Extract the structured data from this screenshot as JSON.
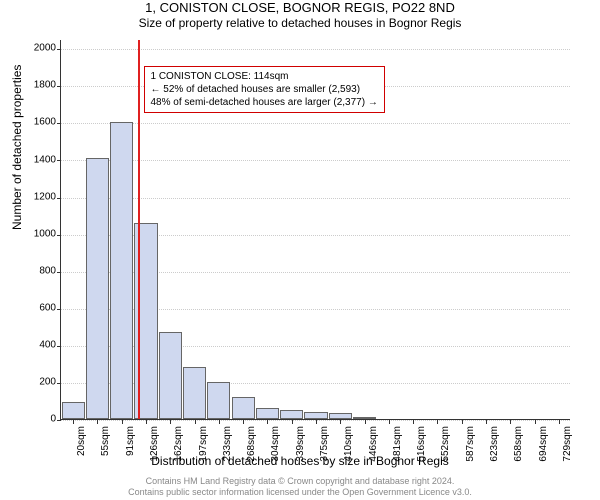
{
  "title": "1, CONISTON CLOSE, BOGNOR REGIS, PO22 8ND",
  "subtitle": "Size of property relative to detached houses in Bognor Regis",
  "ylabel": "Number of detached properties",
  "xlabel": "Distribution of detached houses by size in Bognor Regis",
  "chart": {
    "type": "histogram",
    "background_color": "#ffffff",
    "grid_color": "#cccccc",
    "axis_color": "#333333",
    "bar_fill": "#cfd8ef",
    "bar_border": "#666666",
    "bar_width_ratio": 0.95,
    "ylim": [
      0,
      2050
    ],
    "ytick_step": 200,
    "yticks": [
      0,
      200,
      400,
      600,
      800,
      1000,
      1200,
      1400,
      1600,
      1800,
      2000
    ],
    "x_categories": [
      "20sqm",
      "55sqm",
      "91sqm",
      "126sqm",
      "162sqm",
      "197sqm",
      "233sqm",
      "268sqm",
      "304sqm",
      "339sqm",
      "375sqm",
      "410sqm",
      "446sqm",
      "481sqm",
      "516sqm",
      "552sqm",
      "587sqm",
      "623sqm",
      "658sqm",
      "694sqm",
      "729sqm"
    ],
    "values": [
      90,
      1410,
      1600,
      1060,
      470,
      280,
      200,
      120,
      60,
      50,
      40,
      30,
      10,
      0,
      0,
      0,
      0,
      0,
      0,
      0,
      0
    ],
    "marker": {
      "x_category_index": 2.65,
      "color": "#e02020",
      "label_lines": [
        "1 CONISTON CLOSE: 114sqm",
        "← 52% of detached houses are smaller (2,593)",
        "48% of semi-detached houses are larger (2,377) →"
      ]
    }
  },
  "footer_line1": "Contains HM Land Registry data © Crown copyright and database right 2024.",
  "footer_line2": "Contains public sector information licensed under the Open Government Licence v3.0.",
  "fonts": {
    "title": 13,
    "subtitle": 12,
    "axis_label": 12,
    "tick": 10,
    "annotation": 10,
    "footer": 9
  }
}
